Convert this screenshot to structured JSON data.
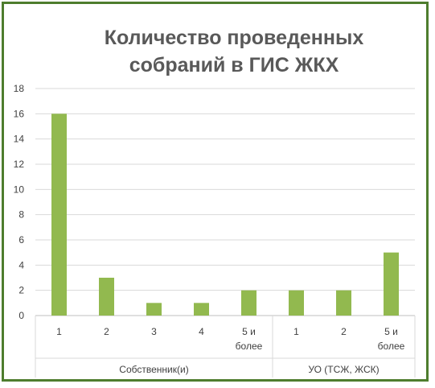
{
  "chart_data": {
    "type": "bar",
    "title": [
      "Количество проведенных",
      "собраний в ГИС ЖКХ"
    ],
    "xlabel": "",
    "ylabel": "",
    "ylim": [
      0,
      18
    ],
    "yticks": [
      0,
      2,
      4,
      6,
      8,
      10,
      12,
      14,
      16,
      18
    ],
    "grid": true,
    "legend": "none",
    "bar_color": "#92b94f",
    "groups": [
      {
        "label": "Собственник(и)",
        "categories": [
          [
            "1"
          ],
          [
            "2"
          ],
          [
            "3"
          ],
          [
            "4"
          ],
          [
            "5 и",
            "более"
          ]
        ],
        "values": [
          16,
          3,
          1,
          1,
          2
        ]
      },
      {
        "label": "УО (ТСЖ, ЖСК)",
        "categories": [
          [
            "1"
          ],
          [
            "2"
          ],
          [
            "5 и",
            "более"
          ]
        ],
        "values": [
          2,
          2,
          5
        ]
      }
    ]
  }
}
